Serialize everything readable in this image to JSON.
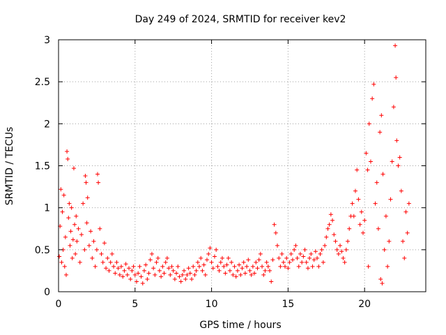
{
  "chart_data": {
    "type": "scatter",
    "title": "Day 249 of 2024, SRMTID for receiver kev2",
    "xlabel": "GPS time / hours",
    "ylabel": "SRMTID / TECUs",
    "xlim": [
      0,
      24
    ],
    "ylim": [
      0,
      3
    ],
    "xticks": [
      0,
      5,
      10,
      15,
      20
    ],
    "xtick_labels": [
      "0",
      "5",
      "10",
      "15",
      "20"
    ],
    "yticks": [
      0,
      0.5,
      1,
      1.5,
      2,
      2.5,
      3
    ],
    "ytick_labels": [
      "0",
      "0.5",
      "1",
      "1.5",
      "2",
      "2.5",
      "3"
    ],
    "grid": true,
    "marker": "+",
    "series": [
      {
        "name": "SRMTID",
        "color": "#ff0000",
        "points": [
          [
            0.05,
            0.42
          ],
          [
            0.1,
            0.78
          ],
          [
            0.15,
            1.22
          ],
          [
            0.2,
            0.35
          ],
          [
            0.25,
            0.95
          ],
          [
            0.3,
            0.5
          ],
          [
            0.35,
            1.15
          ],
          [
            0.4,
            0.3
          ],
          [
            0.45,
            0.65
          ],
          [
            0.5,
            0.2
          ],
          [
            0.55,
            1.67
          ],
          [
            0.6,
            1.58
          ],
          [
            0.65,
            0.88
          ],
          [
            0.7,
            1.05
          ],
          [
            0.75,
            0.55
          ],
          [
            0.8,
            0.72
          ],
          [
            0.85,
            1.0
          ],
          [
            0.9,
            0.4
          ],
          [
            0.95,
            0.62
          ],
          [
            1.0,
            1.47
          ],
          [
            1.05,
            0.8
          ],
          [
            1.1,
            0.45
          ],
          [
            1.15,
            0.9
          ],
          [
            1.2,
            0.6
          ],
          [
            1.3,
            0.75
          ],
          [
            1.4,
            0.35
          ],
          [
            1.5,
            0.68
          ],
          [
            1.6,
            1.05
          ],
          [
            1.7,
            0.5
          ],
          [
            1.75,
            1.38
          ],
          [
            1.8,
            1.3
          ],
          [
            1.85,
            0.82
          ],
          [
            1.9,
            1.12
          ],
          [
            2.0,
            0.55
          ],
          [
            2.1,
            0.72
          ],
          [
            2.2,
            0.4
          ],
          [
            2.3,
            0.6
          ],
          [
            2.4,
            0.3
          ],
          [
            2.5,
            0.5
          ],
          [
            2.55,
            1.4
          ],
          [
            2.6,
            1.3
          ],
          [
            2.7,
            0.75
          ],
          [
            2.8,
            0.45
          ],
          [
            2.9,
            0.35
          ],
          [
            3.0,
            0.58
          ],
          [
            3.1,
            0.28
          ],
          [
            3.2,
            0.4
          ],
          [
            3.3,
            0.25
          ],
          [
            3.4,
            0.35
          ],
          [
            3.5,
            0.45
          ],
          [
            3.6,
            0.3
          ],
          [
            3.7,
            0.22
          ],
          [
            3.8,
            0.35
          ],
          [
            3.9,
            0.28
          ],
          [
            4.0,
            0.2
          ],
          [
            4.1,
            0.3
          ],
          [
            4.2,
            0.18
          ],
          [
            4.3,
            0.25
          ],
          [
            4.4,
            0.33
          ],
          [
            4.5,
            0.2
          ],
          [
            4.6,
            0.28
          ],
          [
            4.7,
            0.15
          ],
          [
            4.8,
            0.25
          ],
          [
            4.9,
            0.3
          ],
          [
            5.0,
            0.2
          ],
          [
            5.1,
            0.12
          ],
          [
            5.2,
            0.22
          ],
          [
            5.3,
            0.3
          ],
          [
            5.4,
            0.18
          ],
          [
            5.5,
            0.1
          ],
          [
            5.6,
            0.25
          ],
          [
            5.7,
            0.32
          ],
          [
            5.8,
            0.15
          ],
          [
            5.9,
            0.22
          ],
          [
            6.0,
            0.38
          ],
          [
            6.1,
            0.45
          ],
          [
            6.2,
            0.28
          ],
          [
            6.3,
            0.2
          ],
          [
            6.4,
            0.35
          ],
          [
            6.5,
            0.4
          ],
          [
            6.6,
            0.25
          ],
          [
            6.7,
            0.18
          ],
          [
            6.8,
            0.3
          ],
          [
            6.9,
            0.22
          ],
          [
            7.0,
            0.35
          ],
          [
            7.1,
            0.4
          ],
          [
            7.2,
            0.28
          ],
          [
            7.3,
            0.2
          ],
          [
            7.4,
            0.3
          ],
          [
            7.5,
            0.25
          ],
          [
            7.6,
            0.15
          ],
          [
            7.7,
            0.22
          ],
          [
            7.8,
            0.3
          ],
          [
            7.9,
            0.18
          ],
          [
            8.0,
            0.12
          ],
          [
            8.1,
            0.2
          ],
          [
            8.2,
            0.25
          ],
          [
            8.3,
            0.15
          ],
          [
            8.4,
            0.2
          ],
          [
            8.5,
            0.28
          ],
          [
            8.6,
            0.22
          ],
          [
            8.7,
            0.15
          ],
          [
            8.8,
            0.3
          ],
          [
            8.9,
            0.2
          ],
          [
            9.0,
            0.25
          ],
          [
            9.1,
            0.35
          ],
          [
            9.2,
            0.3
          ],
          [
            9.3,
            0.4
          ],
          [
            9.4,
            0.25
          ],
          [
            9.5,
            0.32
          ],
          [
            9.6,
            0.2
          ],
          [
            9.7,
            0.38
          ],
          [
            9.8,
            0.45
          ],
          [
            9.9,
            0.52
          ],
          [
            10.0,
            0.35
          ],
          [
            10.1,
            0.28
          ],
          [
            10.2,
            0.42
          ],
          [
            10.3,
            0.5
          ],
          [
            10.4,
            0.3
          ],
          [
            10.5,
            0.25
          ],
          [
            10.6,
            0.35
          ],
          [
            10.7,
            0.4
          ],
          [
            10.8,
            0.3
          ],
          [
            10.9,
            0.22
          ],
          [
            11.0,
            0.32
          ],
          [
            11.1,
            0.4
          ],
          [
            11.2,
            0.25
          ],
          [
            11.3,
            0.35
          ],
          [
            11.4,
            0.2
          ],
          [
            11.5,
            0.3
          ],
          [
            11.6,
            0.18
          ],
          [
            11.7,
            0.25
          ],
          [
            11.8,
            0.32
          ],
          [
            11.9,
            0.2
          ],
          [
            12.0,
            0.28
          ],
          [
            12.1,
            0.35
          ],
          [
            12.2,
            0.22
          ],
          [
            12.3,
            0.3
          ],
          [
            12.4,
            0.38
          ],
          [
            12.5,
            0.25
          ],
          [
            12.6,
            0.2
          ],
          [
            12.7,
            0.3
          ],
          [
            12.8,
            0.22
          ],
          [
            12.9,
            0.35
          ],
          [
            13.0,
            0.28
          ],
          [
            13.1,
            0.38
          ],
          [
            13.2,
            0.45
          ],
          [
            13.3,
            0.3
          ],
          [
            13.4,
            0.2
          ],
          [
            13.5,
            0.25
          ],
          [
            13.6,
            0.35
          ],
          [
            13.7,
            0.3
          ],
          [
            13.8,
            0.25
          ],
          [
            13.9,
            0.12
          ],
          [
            14.0,
            0.38
          ],
          [
            14.1,
            0.8
          ],
          [
            14.2,
            0.7
          ],
          [
            14.3,
            0.55
          ],
          [
            14.4,
            0.4
          ],
          [
            14.5,
            0.3
          ],
          [
            14.6,
            0.45
          ],
          [
            14.7,
            0.35
          ],
          [
            14.8,
            0.3
          ],
          [
            14.9,
            0.4
          ],
          [
            15.0,
            0.28
          ],
          [
            15.1,
            0.35
          ],
          [
            15.2,
            0.45
          ],
          [
            15.3,
            0.38
          ],
          [
            15.4,
            0.5
          ],
          [
            15.5,
            0.55
          ],
          [
            15.6,
            0.4
          ],
          [
            15.7,
            0.3
          ],
          [
            15.8,
            0.45
          ],
          [
            15.9,
            0.35
          ],
          [
            16.0,
            0.42
          ],
          [
            16.1,
            0.5
          ],
          [
            16.2,
            0.35
          ],
          [
            16.3,
            0.28
          ],
          [
            16.4,
            0.4
          ],
          [
            16.5,
            0.45
          ],
          [
            16.6,
            0.3
          ],
          [
            16.7,
            0.38
          ],
          [
            16.8,
            0.48
          ],
          [
            16.9,
            0.4
          ],
          [
            17.0,
            0.3
          ],
          [
            17.1,
            0.45
          ],
          [
            17.2,
            0.5
          ],
          [
            17.3,
            0.35
          ],
          [
            17.4,
            0.55
          ],
          [
            17.5,
            0.65
          ],
          [
            17.6,
            0.75
          ],
          [
            17.7,
            0.8
          ],
          [
            17.8,
            0.92
          ],
          [
            17.9,
            0.85
          ],
          [
            18.0,
            0.68
          ],
          [
            18.1,
            0.6
          ],
          [
            18.2,
            0.5
          ],
          [
            18.3,
            0.45
          ],
          [
            18.4,
            0.55
          ],
          [
            18.5,
            0.48
          ],
          [
            18.6,
            0.4
          ],
          [
            18.7,
            0.35
          ],
          [
            18.8,
            0.5
          ],
          [
            18.9,
            0.6
          ],
          [
            19.0,
            0.75
          ],
          [
            19.1,
            0.9
          ],
          [
            19.2,
            1.05
          ],
          [
            19.3,
            0.9
          ],
          [
            19.4,
            1.2
          ],
          [
            19.5,
            1.45
          ],
          [
            19.6,
            1.1
          ],
          [
            19.7,
            0.8
          ],
          [
            19.8,
            0.95
          ],
          [
            19.9,
            0.7
          ],
          [
            20.0,
            0.85
          ],
          [
            20.1,
            1.65
          ],
          [
            20.2,
            1.45
          ],
          [
            20.3,
            2.0
          ],
          [
            20.4,
            1.55
          ],
          [
            20.5,
            2.3
          ],
          [
            20.6,
            2.47
          ],
          [
            20.7,
            1.05
          ],
          [
            20.8,
            1.3
          ],
          [
            20.9,
            0.75
          ],
          [
            21.0,
            1.9
          ],
          [
            21.1,
            2.1
          ],
          [
            21.2,
            1.4
          ],
          [
            21.3,
            0.5
          ],
          [
            21.4,
            0.9
          ],
          [
            21.5,
            0.3
          ],
          [
            21.6,
            0.6
          ],
          [
            21.7,
            1.1
          ],
          [
            21.8,
            1.55
          ],
          [
            21.9,
            2.2
          ],
          [
            22.0,
            2.93
          ],
          [
            22.05,
            2.55
          ],
          [
            22.1,
            1.8
          ],
          [
            22.2,
            1.5
          ],
          [
            22.3,
            1.6
          ],
          [
            22.4,
            1.2
          ],
          [
            22.5,
            0.6
          ],
          [
            22.6,
            0.4
          ],
          [
            22.7,
            0.95
          ],
          [
            22.8,
            0.7
          ],
          [
            22.9,
            1.05
          ],
          [
            21.05,
            0.15
          ],
          [
            21.15,
            0.1
          ],
          [
            20.25,
            0.3
          ]
        ]
      }
    ]
  }
}
